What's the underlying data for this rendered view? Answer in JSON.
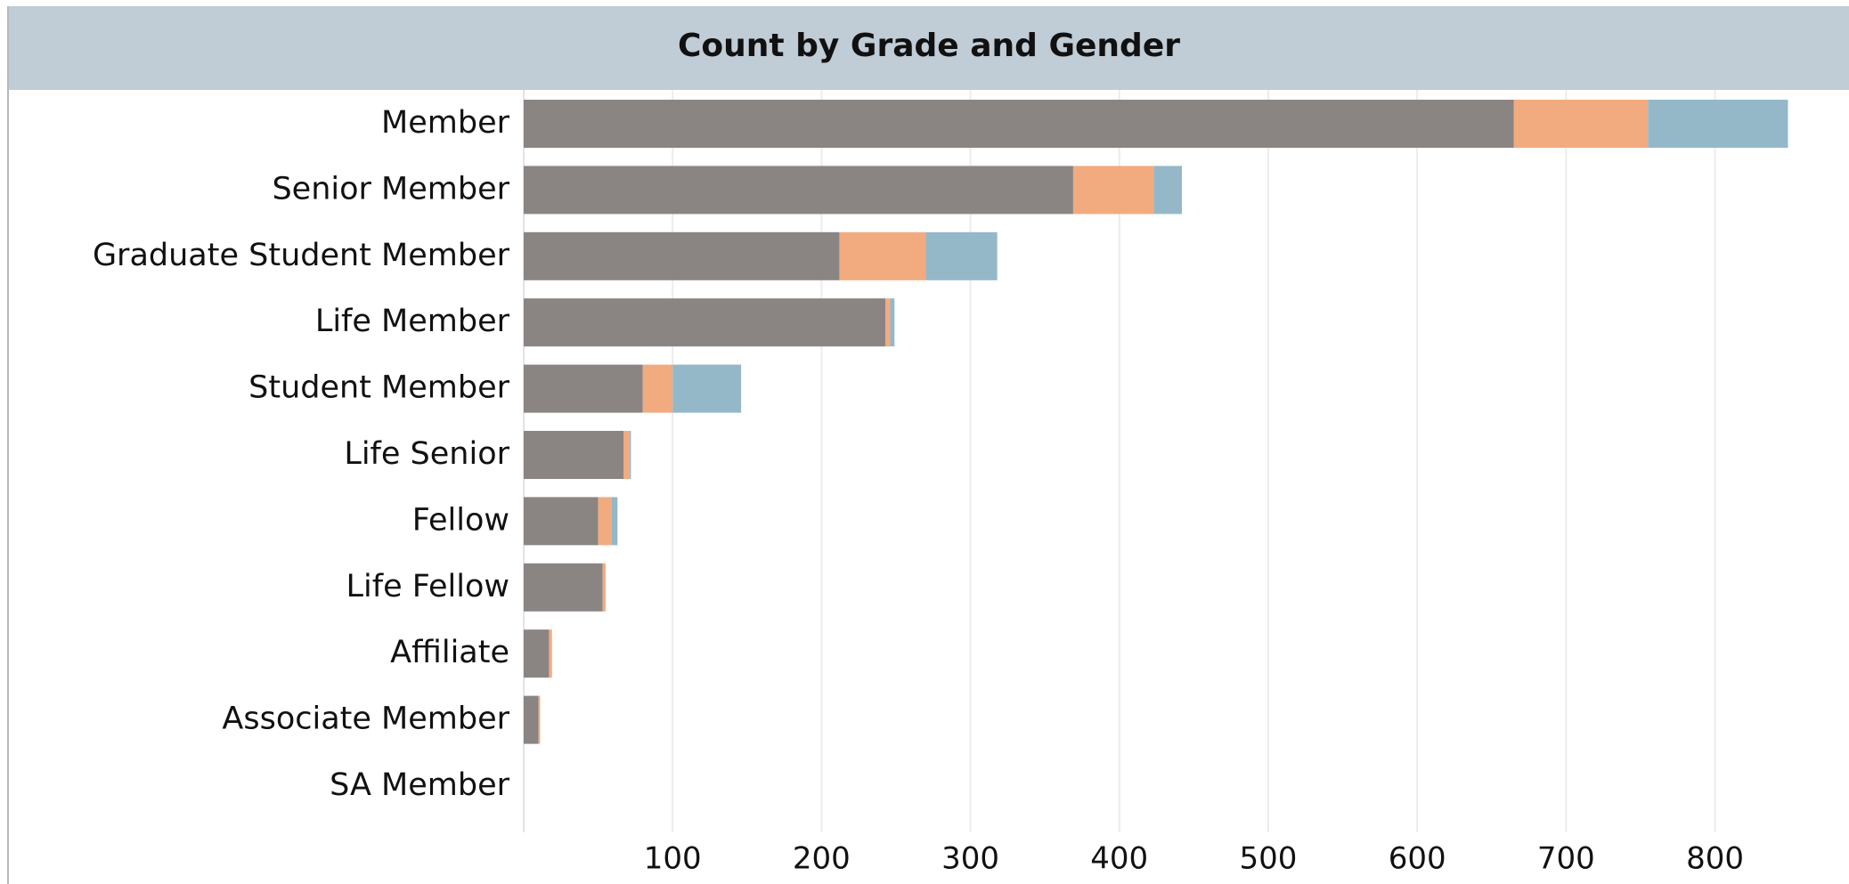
{
  "chart_data": {
    "type": "stacked_barh",
    "title": "Count by Grade and Gender",
    "categories": [
      "Member",
      "Senior Member",
      "Graduate Student Member",
      "Life Member",
      "Student Member",
      "Life Senior",
      "Fellow",
      "Life Fellow",
      "Affiliate",
      "Associate Member",
      "SA Member"
    ],
    "series": [
      {
        "color": "#8a8583",
        "values": [
          665,
          369,
          212,
          243,
          80,
          67,
          50,
          53,
          17,
          10,
          0
        ]
      },
      {
        "color": "#f2ab7e",
        "values": [
          90,
          54,
          58,
          3,
          20,
          4,
          9,
          2,
          2,
          1,
          0
        ]
      },
      {
        "color": "#94b8c8",
        "values": [
          94,
          19,
          48,
          3,
          46,
          1,
          4,
          0,
          0,
          0,
          0
        ]
      }
    ],
    "xlim": [
      0,
      890
    ],
    "xticks": [
      100,
      200,
      300,
      400,
      500,
      600,
      700,
      800
    ],
    "grid": true
  }
}
